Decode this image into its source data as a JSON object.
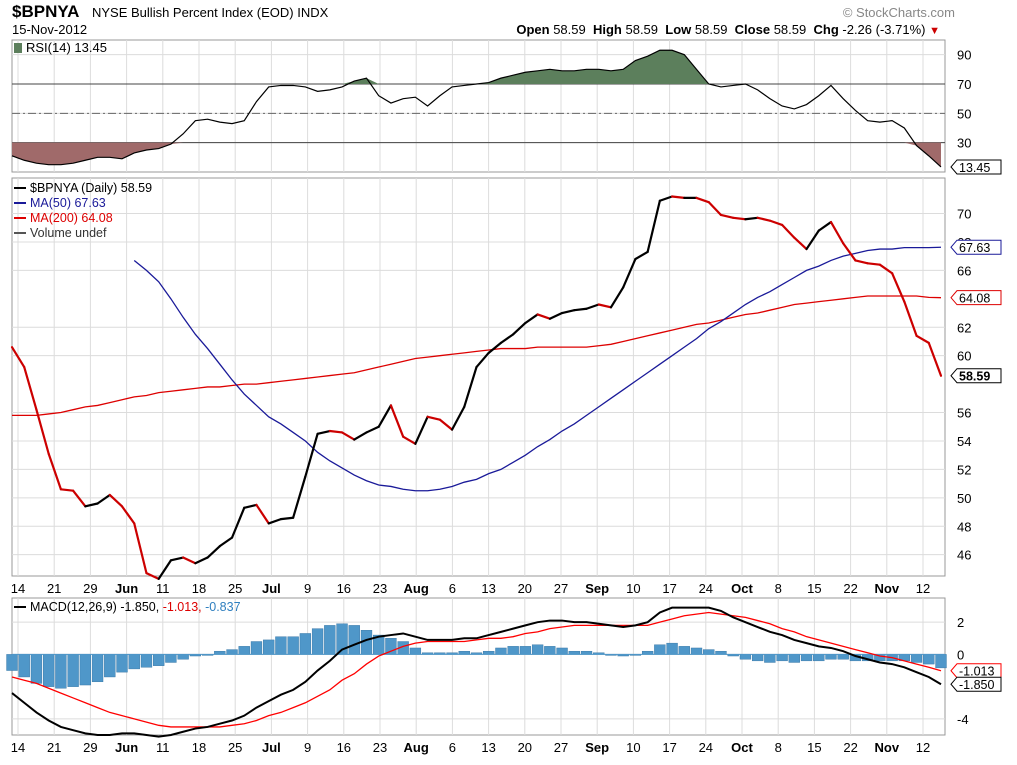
{
  "header": {
    "ticker": "$BPNYA",
    "description": "NYSE Bullish Percent Index (EOD)",
    "exchange": "INDX",
    "date": "15-Nov-2012",
    "brand": "© StockCharts.com",
    "open_label": "Open",
    "open": "58.59",
    "high_label": "High",
    "high": "58.59",
    "low_label": "Low",
    "low": "58.59",
    "close_label": "Close",
    "close": "58.59",
    "chg_label": "Chg",
    "chg": "-2.26 (-3.71%)"
  },
  "colors": {
    "price": "#000000",
    "price_down": "#cc0000",
    "ma50": "#1a1a99",
    "ma200": "#dd0000",
    "rsi_line": "#000000",
    "rsi_high_fill": "#5c7f5c",
    "rsi_low_fill": "#a06a6a",
    "macd_line": "#000000",
    "signal_line": "#ff0000",
    "histogram": "#4f97c9"
  },
  "chart_data": [
    {
      "type": "line",
      "panel": "rsi",
      "label": "RSI(14) 13.45",
      "last_value_tag": "13.45",
      "y_ticks": [
        "90",
        "70",
        "50",
        "30"
      ],
      "ylim": [
        10,
        100
      ],
      "overbought": 70,
      "oversold": 30,
      "series": [
        {
          "name": "RSI(14)",
          "values": [
            21,
            18,
            16,
            15,
            15,
            16,
            18,
            20,
            20,
            19,
            23,
            25,
            26,
            29,
            36,
            45,
            46,
            44,
            43,
            45,
            58,
            68,
            69,
            69,
            68,
            65,
            66,
            68,
            72,
            74,
            62,
            57,
            60,
            61,
            55,
            62,
            68,
            69,
            70,
            71,
            74,
            76,
            78,
            79,
            80,
            79,
            79,
            80,
            80,
            79,
            80,
            86,
            89,
            93,
            93,
            90,
            80,
            70,
            68,
            69,
            70,
            66,
            60,
            55,
            53,
            56,
            62,
            69,
            60,
            52,
            45,
            44,
            45,
            40,
            28,
            21,
            13.45
          ]
        }
      ]
    },
    {
      "type": "line",
      "panel": "price",
      "x_ticks": [
        "14",
        "21",
        "29",
        "Jun",
        "11",
        "18",
        "25",
        "Jul",
        "9",
        "16",
        "23",
        "Aug",
        "6",
        "13",
        "20",
        "27",
        "Sep",
        "10",
        "17",
        "24",
        "Oct",
        "8",
        "15",
        "22",
        "Nov",
        "12"
      ],
      "bold_ticks": [
        "Jun",
        "Jul",
        "Aug",
        "Sep",
        "Oct",
        "Nov"
      ],
      "y_ticks": [
        "70",
        "68",
        "66",
        "62",
        "60",
        "56",
        "54",
        "52",
        "50",
        "48",
        "46"
      ],
      "ylim": [
        44.5,
        72.5
      ],
      "legend": [
        {
          "text": "$BPNYA (Daily) 58.59",
          "color": "#000000"
        },
        {
          "text": "MA(50) 67.63",
          "color": "#1a1a99"
        },
        {
          "text": "MA(200) 64.08",
          "color": "#dd0000"
        },
        {
          "text": "Volume undef",
          "color": "#555555"
        }
      ],
      "tags": [
        "67.63",
        "64.08",
        "58.59"
      ],
      "series": [
        {
          "name": "$BPNYA",
          "values": [
            60.6,
            59.2,
            56.2,
            53.1,
            50.6,
            50.5,
            49.4,
            49.6,
            50.2,
            49.4,
            48.2,
            44.7,
            44.3,
            45.6,
            45.8,
            45.4,
            45.8,
            46.6,
            47.2,
            49.3,
            49.5,
            48.2,
            48.5,
            48.6,
            51.5,
            54.5,
            54.7,
            54.6,
            54.1,
            54.6,
            55.0,
            56.5,
            54.3,
            53.8,
            55.7,
            55.5,
            54.8,
            56.4,
            59.2,
            60.2,
            60.9,
            61.5,
            62.3,
            62.9,
            62.6,
            63.0,
            63.2,
            63.3,
            63.6,
            63.4,
            64.8,
            66.8,
            67.3,
            70.9,
            71.2,
            71.1,
            71.1,
            70.8,
            69.9,
            69.7,
            69.6,
            69.7,
            69.5,
            69.2,
            68.3,
            67.5,
            68.8,
            69.4,
            67.9,
            66.7,
            66.5,
            66.4,
            65.8,
            63.8,
            61.4,
            60.9,
            58.59
          ]
        },
        {
          "name": "MA(50)",
          "values": [
            null,
            null,
            null,
            null,
            null,
            null,
            null,
            null,
            null,
            null,
            66.7,
            66.0,
            65.2,
            64.0,
            62.7,
            61.5,
            60.5,
            59.4,
            58.3,
            57.3,
            56.5,
            55.7,
            55.2,
            54.6,
            54.0,
            53.2,
            52.6,
            52.1,
            51.6,
            51.2,
            50.9,
            50.8,
            50.6,
            50.5,
            50.5,
            50.6,
            50.8,
            51.1,
            51.3,
            51.7,
            52.0,
            52.5,
            53.0,
            53.6,
            54.1,
            54.7,
            55.2,
            55.8,
            56.4,
            57.0,
            57.6,
            58.2,
            58.8,
            59.4,
            60.0,
            60.6,
            61.2,
            61.9,
            62.4,
            63.0,
            63.6,
            64.1,
            64.5,
            65.0,
            65.5,
            66.0,
            66.3,
            66.7,
            67.0,
            67.2,
            67.4,
            67.5,
            67.5,
            67.6,
            67.6,
            67.6,
            67.63
          ]
        },
        {
          "name": "MA(200)",
          "values": [
            55.8,
            55.8,
            55.8,
            55.9,
            56.0,
            56.2,
            56.4,
            56.5,
            56.7,
            56.9,
            57.1,
            57.2,
            57.4,
            57.5,
            57.6,
            57.7,
            57.8,
            57.8,
            57.9,
            58.0,
            58.0,
            58.1,
            58.2,
            58.3,
            58.4,
            58.5,
            58.6,
            58.7,
            58.8,
            59.0,
            59.2,
            59.4,
            59.6,
            59.8,
            59.9,
            60.0,
            60.1,
            60.2,
            60.3,
            60.4,
            60.5,
            60.5,
            60.5,
            60.6,
            60.6,
            60.6,
            60.6,
            60.6,
            60.7,
            60.8,
            61.0,
            61.2,
            61.4,
            61.6,
            61.8,
            62.0,
            62.2,
            62.3,
            62.5,
            62.7,
            62.9,
            63.0,
            63.2,
            63.4,
            63.6,
            63.7,
            63.8,
            63.9,
            64.0,
            64.1,
            64.2,
            64.2,
            64.2,
            64.2,
            64.2,
            64.1,
            64.08
          ]
        }
      ]
    },
    {
      "type": "line",
      "panel": "macd",
      "label_prefix": "MACD(12,26,9)",
      "macd_text": "-1.850,",
      "signal_text": "-1.013,",
      "hist_text": "-0.837",
      "x_ticks": [
        "14",
        "21",
        "29",
        "Jun",
        "11",
        "18",
        "25",
        "Jul",
        "9",
        "16",
        "23",
        "Aug",
        "6",
        "13",
        "20",
        "27",
        "Sep",
        "10",
        "17",
        "24",
        "Oct",
        "8",
        "15",
        "22",
        "Nov",
        "12"
      ],
      "y_ticks": [
        "2",
        "0",
        "-4"
      ],
      "ylim": [
        -5,
        3.5
      ],
      "tags": [
        "-1.013",
        "-1.850"
      ],
      "series": [
        {
          "name": "MACD",
          "values": [
            -2.4,
            -3.0,
            -3.6,
            -4.1,
            -4.5,
            -4.7,
            -4.9,
            -5.0,
            -5.0,
            -4.9,
            -4.9,
            -5.0,
            -5.1,
            -5.0,
            -4.8,
            -4.6,
            -4.5,
            -4.3,
            -4.1,
            -3.8,
            -3.3,
            -2.9,
            -2.5,
            -2.2,
            -1.7,
            -1.0,
            -0.4,
            0.3,
            0.6,
            0.9,
            1.1,
            1.2,
            1.3,
            1.1,
            0.9,
            0.9,
            0.9,
            1.0,
            1.0,
            1.2,
            1.4,
            1.6,
            1.8,
            2.0,
            2.1,
            2.1,
            2.0,
            2.0,
            1.9,
            1.8,
            1.7,
            1.8,
            2.0,
            2.6,
            2.9,
            2.9,
            2.9,
            2.9,
            2.7,
            2.3,
            2.0,
            1.7,
            1.4,
            1.2,
            0.9,
            0.7,
            0.5,
            0.4,
            0.2,
            -0.1,
            -0.3,
            -0.5,
            -0.6,
            -0.8,
            -1.1,
            -1.4,
            -1.85
          ]
        },
        {
          "name": "Signal",
          "values": [
            -1.4,
            -1.6,
            -1.8,
            -2.1,
            -2.4,
            -2.7,
            -3.0,
            -3.3,
            -3.6,
            -3.8,
            -4.0,
            -4.2,
            -4.4,
            -4.5,
            -4.5,
            -4.5,
            -4.5,
            -4.5,
            -4.4,
            -4.3,
            -4.1,
            -3.8,
            -3.6,
            -3.3,
            -3.0,
            -2.6,
            -2.2,
            -1.6,
            -1.2,
            -0.6,
            -0.1,
            0.2,
            0.5,
            0.7,
            0.8,
            0.8,
            0.8,
            0.8,
            0.9,
            1.0,
            1.0,
            1.1,
            1.3,
            1.4,
            1.6,
            1.7,
            1.8,
            1.8,
            1.8,
            1.8,
            1.8,
            1.8,
            1.8,
            2.0,
            2.2,
            2.4,
            2.5,
            2.6,
            2.5,
            2.4,
            2.3,
            2.1,
            1.9,
            1.6,
            1.4,
            1.1,
            0.9,
            0.7,
            0.5,
            0.3,
            0.1,
            -0.1,
            -0.2,
            -0.4,
            -0.6,
            -0.8,
            -1.013
          ]
        },
        {
          "name": "Histogram",
          "values": [
            -1.0,
            -1.4,
            -1.8,
            -2.0,
            -2.1,
            -2.0,
            -1.9,
            -1.7,
            -1.4,
            -1.1,
            -0.9,
            -0.8,
            -0.7,
            -0.5,
            -0.3,
            -0.1,
            0.0,
            0.2,
            0.3,
            0.5,
            0.8,
            0.9,
            1.1,
            1.1,
            1.3,
            1.6,
            1.8,
            1.9,
            1.8,
            1.5,
            1.2,
            1.0,
            0.8,
            0.4,
            0.1,
            0.1,
            0.1,
            0.2,
            0.1,
            0.2,
            0.4,
            0.5,
            0.5,
            0.6,
            0.5,
            0.4,
            0.2,
            0.2,
            0.1,
            0.0,
            -0.1,
            0.0,
            0.2,
            0.6,
            0.7,
            0.5,
            0.4,
            0.3,
            0.2,
            -0.1,
            -0.3,
            -0.4,
            -0.5,
            -0.4,
            -0.5,
            -0.4,
            -0.4,
            -0.3,
            -0.3,
            -0.4,
            -0.4,
            -0.4,
            -0.4,
            -0.4,
            -0.5,
            -0.6,
            -0.837
          ]
        }
      ]
    }
  ]
}
